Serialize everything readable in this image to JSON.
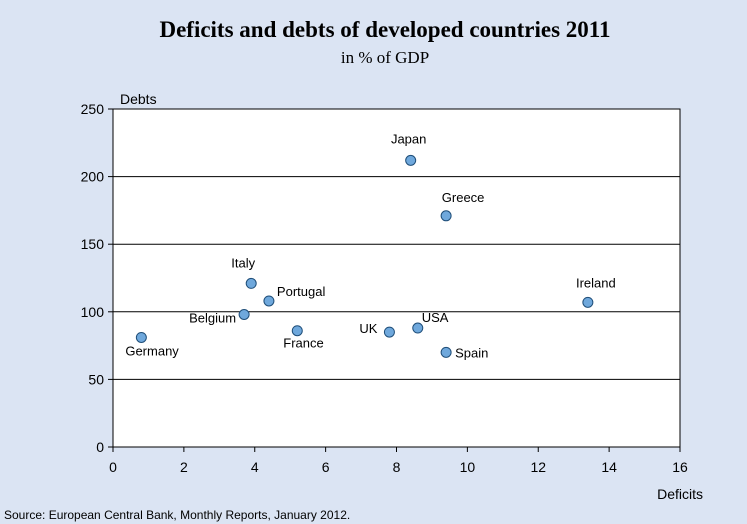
{
  "chart_data": {
    "type": "scatter",
    "title": "Deficits and debts of developed countries 2011",
    "subtitle": "in % of GDP",
    "xlabel": "Deficits",
    "ylabel": "Debts",
    "xlim": [
      0,
      16
    ],
    "ylim": [
      0,
      250
    ],
    "xticks": [
      0,
      2,
      4,
      6,
      8,
      10,
      12,
      14,
      16
    ],
    "yticks": [
      0,
      50,
      100,
      150,
      200,
      250
    ],
    "grid": "horizontal",
    "points": [
      {
        "label": "Germany",
        "x": 0.8,
        "y": 81
      },
      {
        "label": "Belgium",
        "x": 3.7,
        "y": 98
      },
      {
        "label": "Italy",
        "x": 3.9,
        "y": 121
      },
      {
        "label": "Portugal",
        "x": 4.4,
        "y": 108
      },
      {
        "label": "France",
        "x": 5.2,
        "y": 86
      },
      {
        "label": "UK",
        "x": 7.8,
        "y": 85
      },
      {
        "label": "Japan",
        "x": 8.4,
        "y": 212
      },
      {
        "label": "USA",
        "x": 8.6,
        "y": 88
      },
      {
        "label": "Greece",
        "x": 9.4,
        "y": 171
      },
      {
        "label": "Spain",
        "x": 9.4,
        "y": 70
      },
      {
        "label": "Ireland",
        "x": 13.4,
        "y": 107
      }
    ],
    "marker_color": "#6fa8dc",
    "marker_edge_color": "#1f4e79",
    "source": "Source: European Central Bank, Monthly Reports, January 2012."
  }
}
